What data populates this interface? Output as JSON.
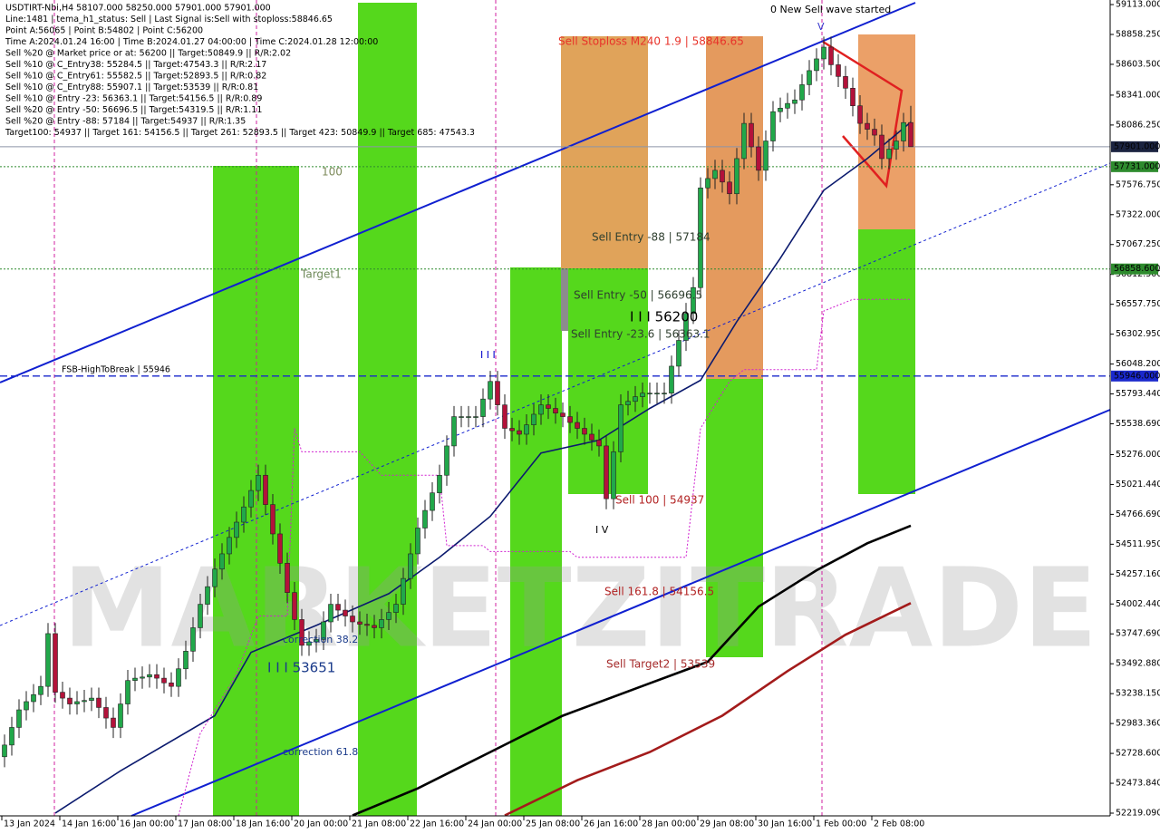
{
  "chart_data": {
    "type": "candlestick",
    "info_lines": [
      "USDTIRT-Nbi,H4  58107.000 58250.000 57901.000 57901.000",
      "Line:1481 | tema_h1_status: Sell | Last Signal is:Sell with stoploss:58846.65",
      "Point A:56065 | Point B:54802 | Point C:56200",
      "Time A:2024.01.24 16:00 | Time B:2024.01.27 04:00:00 | Time C:2024.01.28 12:00:00",
      "Sell %20 @ Market price or at: 56200 || Target:50849.9 || R/R:2.02",
      "Sell %10 @ C_Entry38: 55284.5 || Target:47543.3 || R/R:2.17",
      "Sell %10 @ C_Entry61: 55582.5 || Target:52893.5 || R/R:0.82",
      "Sell %10 @ C_Entry88: 55907.1 || Target:53539 || R/R:0.81",
      "Sell %10 @ Entry -23: 56363.1 || Target:54156.5 || R/R:0.89",
      "Sell %20 @ Entry -50: 56696.5 || Target:54319.5 || R/R:1.11",
      "Sell %20 @ Entry -88: 57184 || Target:54937 || R/R:1.35",
      "Target100: 54937 || Target 161: 54156.5 || Target 261: 52893.5 || Target 423: 50849.9 || Target 685: 47543.3"
    ],
    "watermark": "MARKETZITRADE",
    "categories": [
      "13 Jan 2024",
      "14 Jan 16:00",
      "16 Jan 00:00",
      "17 Jan 08:00",
      "18 Jan 16:00",
      "20 Jan 00:00",
      "21 Jan 08:00",
      "22 Jan 16:00",
      "24 Jan 00:00",
      "25 Jan 08:00",
      "26 Jan 16:00",
      "28 Jan 00:00",
      "29 Jan 08:00",
      "30 Jan 16:00",
      "1 Feb 00:00",
      "2 Feb 08:00"
    ],
    "ylim": [
      52196,
      59152
    ],
    "yticks": [
      {
        "value": 59113,
        "label": "59113.000"
      },
      {
        "value": 58858.25,
        "label": "58858.250"
      },
      {
        "value": 58603.5,
        "label": "58603.500"
      },
      {
        "value": 58341,
        "label": "58341.000"
      },
      {
        "value": 58086.25,
        "label": "58086.250"
      },
      {
        "value": 57576.75,
        "label": "57576.750"
      },
      {
        "value": 57322,
        "label": "57322.000"
      },
      {
        "value": 57067.25,
        "label": "57067.250"
      },
      {
        "value": 56812.5,
        "label": "56812.500"
      },
      {
        "value": 56557.75,
        "label": "56557.750"
      },
      {
        "value": 56302.95,
        "label": "56302.950"
      },
      {
        "value": 56048.2,
        "label": "56048.200"
      },
      {
        "value": 55793.44,
        "label": "55793.440"
      },
      {
        "value": 55538.69,
        "label": "55538.690"
      },
      {
        "value": 55276,
        "label": "55276.000"
      },
      {
        "value": 55021.44,
        "label": "55021.440"
      },
      {
        "value": 54766.69,
        "label": "54766.690"
      },
      {
        "value": 54511.95,
        "label": "54511.950"
      },
      {
        "value": 54257.16,
        "label": "54257.160"
      },
      {
        "value": 54002.44,
        "label": "54002.440"
      },
      {
        "value": 53747.69,
        "label": "53747.690"
      },
      {
        "value": 53492.88,
        "label": "53492.880"
      },
      {
        "value": 53238.15,
        "label": "53238.150"
      },
      {
        "value": 52983.36,
        "label": "52983.360"
      },
      {
        "value": 52728.6,
        "label": "52728.600"
      },
      {
        "value": 52473.84,
        "label": "52473.840"
      },
      {
        "value": 52219.09,
        "label": "52219.090"
      }
    ],
    "levels": [
      {
        "value": 57901,
        "label": "57901.000",
        "color": "#1b2340",
        "line_color": "#8c95a8",
        "style": "solid"
      },
      {
        "value": 57731,
        "label": "57731.000",
        "color": "#2e8b2e",
        "line_color": "#2e8b2e",
        "style": "dotted"
      },
      {
        "value": 56858.6,
        "label": "56858.600",
        "color": "#2e8b2e",
        "line_color": "#2e8b2e",
        "style": "dotted"
      },
      {
        "value": 55946,
        "label": "55946.000",
        "color": "#1a28cc",
        "line_color": "#1a28cc",
        "style": "dashed"
      }
    ],
    "up_color": "#21a84a",
    "down_color": "#b3123a",
    "ohlc": [
      [
        52700,
        52890,
        52610,
        52800
      ],
      [
        52800,
        53040,
        52710,
        52950
      ],
      [
        52950,
        53190,
        52860,
        53100
      ],
      [
        53100,
        53260,
        53010,
        53170
      ],
      [
        53170,
        53320,
        53080,
        53230
      ],
      [
        53230,
        53390,
        53140,
        53300
      ],
      [
        53300,
        53840,
        53210,
        53750
      ],
      [
        53750,
        53840,
        53160,
        53250
      ],
      [
        53250,
        53340,
        53110,
        53200
      ],
      [
        53200,
        53290,
        53060,
        53150
      ],
      [
        53150,
        53260,
        53060,
        53170
      ],
      [
        53170,
        53270,
        53080,
        53180
      ],
      [
        53180,
        53290,
        53090,
        53200
      ],
      [
        53200,
        53290,
        53030,
        53120
      ],
      [
        53120,
        53210,
        52940,
        53030
      ],
      [
        53030,
        53120,
        52860,
        52950
      ],
      [
        52950,
        53240,
        52860,
        53150
      ],
      [
        53150,
        53440,
        53060,
        53350
      ],
      [
        53350,
        53460,
        53260,
        53370
      ],
      [
        53370,
        53470,
        53280,
        53380
      ],
      [
        53380,
        53490,
        53290,
        53400
      ],
      [
        53400,
        53490,
        53280,
        53370
      ],
      [
        53370,
        53460,
        53240,
        53330
      ],
      [
        53330,
        53420,
        53210,
        53300
      ],
      [
        53300,
        53540,
        53210,
        53450
      ],
      [
        53450,
        53690,
        53360,
        53600
      ],
      [
        53600,
        53890,
        53510,
        53800
      ],
      [
        53800,
        54090,
        53710,
        54000
      ],
      [
        54000,
        54240,
        53910,
        54150
      ],
      [
        54150,
        54390,
        54060,
        54300
      ],
      [
        54300,
        54520,
        54210,
        54430
      ],
      [
        54430,
        54660,
        54340,
        54570
      ],
      [
        54570,
        54790,
        54480,
        54700
      ],
      [
        54700,
        54920,
        54610,
        54830
      ],
      [
        54830,
        55060,
        54740,
        54970
      ],
      [
        54970,
        55190,
        54880,
        55100
      ],
      [
        55100,
        55190,
        54760,
        54850
      ],
      [
        54850,
        54940,
        54510,
        54600
      ],
      [
        54600,
        54690,
        54260,
        54350
      ],
      [
        54350,
        54440,
        54010,
        54100
      ],
      [
        54100,
        54190,
        53780,
        53870
      ],
      [
        53870,
        53960,
        53560,
        53650
      ],
      [
        53650,
        53770,
        53560,
        53680
      ],
      [
        53680,
        53790,
        53590,
        53700
      ],
      [
        53700,
        53940,
        53610,
        53850
      ],
      [
        53850,
        54090,
        53760,
        54000
      ],
      [
        54000,
        54090,
        53860,
        53950
      ],
      [
        53950,
        54040,
        53810,
        53900
      ],
      [
        53900,
        53990,
        53760,
        53850
      ],
      [
        53850,
        53940,
        53740,
        53830
      ],
      [
        53830,
        53920,
        53730,
        53820
      ],
      [
        53820,
        53910,
        53710,
        53800
      ],
      [
        53800,
        53960,
        53710,
        53870
      ],
      [
        53870,
        54020,
        53780,
        53930
      ],
      [
        53930,
        54090,
        53840,
        54000
      ],
      [
        54000,
        54310,
        53910,
        54220
      ],
      [
        54220,
        54520,
        54130,
        54430
      ],
      [
        54430,
        54740,
        54340,
        54650
      ],
      [
        54650,
        54890,
        54560,
        54800
      ],
      [
        54800,
        55040,
        54710,
        54950
      ],
      [
        54950,
        55190,
        54860,
        55100
      ],
      [
        55100,
        55440,
        55010,
        55350
      ],
      [
        55350,
        55690,
        55260,
        55600
      ],
      [
        55600,
        55690,
        55510,
        55600
      ],
      [
        55600,
        55690,
        55510,
        55600
      ],
      [
        55600,
        55690,
        55510,
        55600
      ],
      [
        55600,
        55840,
        55510,
        55750
      ],
      [
        55750,
        55990,
        55660,
        55900
      ],
      [
        55900,
        55990,
        55610,
        55700
      ],
      [
        55700,
        55790,
        55410,
        55500
      ],
      [
        55500,
        55590,
        55390,
        55480
      ],
      [
        55480,
        55570,
        55360,
        55450
      ],
      [
        55450,
        55620,
        55360,
        55530
      ],
      [
        55530,
        55710,
        55440,
        55620
      ],
      [
        55620,
        55790,
        55530,
        55700
      ],
      [
        55700,
        55790,
        55580,
        55670
      ],
      [
        55670,
        55760,
        55540,
        55630
      ],
      [
        55630,
        55720,
        55510,
        55600
      ],
      [
        55600,
        55690,
        55460,
        55550
      ],
      [
        55550,
        55640,
        55410,
        55500
      ],
      [
        55500,
        55590,
        55360,
        55450
      ],
      [
        55450,
        55540,
        55310,
        55400
      ],
      [
        55400,
        55490,
        55260,
        55350
      ],
      [
        55350,
        55440,
        54810,
        54900
      ],
      [
        54900,
        55390,
        54810,
        55300
      ],
      [
        55300,
        55790,
        55210,
        55700
      ],
      [
        55700,
        55820,
        55610,
        55730
      ],
      [
        55730,
        55860,
        55640,
        55770
      ],
      [
        55770,
        55890,
        55680,
        55800
      ],
      [
        55800,
        55890,
        55710,
        55800
      ],
      [
        55800,
        55890,
        55710,
        55800
      ],
      [
        55800,
        55890,
        55710,
        55800
      ],
      [
        55800,
        56120,
        55710,
        56030
      ],
      [
        56030,
        56340,
        55940,
        56250
      ],
      [
        56250,
        56570,
        56160,
        56480
      ],
      [
        56480,
        56790,
        56390,
        56700
      ],
      [
        56700,
        57640,
        56610,
        57550
      ],
      [
        57550,
        57720,
        57460,
        57630
      ],
      [
        57630,
        57790,
        57540,
        57700
      ],
      [
        57700,
        57790,
        57510,
        57600
      ],
      [
        57600,
        57690,
        57410,
        57500
      ],
      [
        57500,
        57890,
        57410,
        57800
      ],
      [
        57800,
        58190,
        57710,
        58100
      ],
      [
        58100,
        58190,
        57810,
        57900
      ],
      [
        57900,
        57990,
        57610,
        57700
      ],
      [
        57700,
        58040,
        57610,
        57950
      ],
      [
        57950,
        58290,
        57860,
        58200
      ],
      [
        58200,
        58320,
        58110,
        58230
      ],
      [
        58230,
        58360,
        58140,
        58270
      ],
      [
        58270,
        58390,
        58180,
        58300
      ],
      [
        58300,
        58520,
        58210,
        58430
      ],
      [
        58430,
        58640,
        58340,
        58550
      ],
      [
        58550,
        58740,
        58460,
        58650
      ],
      [
        58650,
        58840,
        58560,
        58750
      ],
      [
        58750,
        58840,
        58510,
        58600
      ],
      [
        58600,
        58690,
        58410,
        58500
      ],
      [
        58500,
        58590,
        58310,
        58400
      ],
      [
        58400,
        58490,
        58160,
        58250
      ],
      [
        58250,
        58340,
        58010,
        58100
      ],
      [
        58100,
        58190,
        57960,
        58050
      ],
      [
        58050,
        58140,
        57910,
        58000
      ],
      [
        58000,
        58090,
        57710,
        57800
      ],
      [
        57800,
        57970,
        57710,
        57880
      ],
      [
        57880,
        58040,
        57790,
        57950
      ],
      [
        57950,
        58190,
        57860,
        58107
      ],
      [
        58107,
        58250,
        57901,
        57901
      ]
    ],
    "series": [
      {
        "color": "#0b1a6e",
        "width": 1.6,
        "dash": "none",
        "x": [
          7,
          16,
          29,
          34,
          43,
          53,
          60,
          67,
          74,
          82,
          89,
          96,
          101,
          107,
          113,
          119,
          125
        ],
        "values": [
          52220,
          52580,
          53050,
          53590,
          53820,
          54090,
          54400,
          54750,
          55290,
          55400,
          55670,
          55910,
          56410,
          56950,
          57530,
          57800,
          58110
        ]
      },
      {
        "color": "#000000",
        "width": 2.6,
        "dash": "none",
        "x": [
          48,
          57,
          67,
          77,
          87,
          97,
          104,
          112,
          119,
          125
        ],
        "values": [
          52200,
          52430,
          52740,
          53050,
          53280,
          53510,
          53980,
          54290,
          54520,
          54670
        ]
      },
      {
        "color": "#a31b1b",
        "width": 2.6,
        "dash": "none",
        "x": [
          69,
          79,
          89,
          99,
          108,
          116,
          125
        ],
        "values": [
          52200,
          52500,
          52740,
          53050,
          53430,
          53740,
          54010
        ]
      },
      {
        "color": "#d020d0",
        "width": 1,
        "dash": "2,2",
        "x": [
          24,
          27,
          32,
          35,
          39,
          40,
          41,
          49,
          52,
          60,
          61,
          66,
          67,
          78,
          79,
          94,
          96,
          100,
          102,
          112,
          113,
          117,
          125
        ],
        "values": [
          52200,
          52900,
          53400,
          53900,
          53900,
          55500,
          55300,
          55300,
          55100,
          55100,
          54500,
          54500,
          54450,
          54450,
          54400,
          54400,
          55500,
          55900,
          56000,
          56000,
          56500,
          56600,
          56600
        ]
      }
    ],
    "annotations": [
      "0 New Sell wave started",
      "Sell Stoploss M240 1.9 | 58846.65",
      "100",
      "Target1",
      "Sell Entry -88 | 57184",
      "Sell Entry -50 | 56696.5",
      "I I I 56200",
      "Sell Entry -23.6 | 56363.1",
      "FSB-HighToBreak | 55946",
      "I I I",
      "Sell 100 | 54937",
      "I V",
      "Sell 161.8 | 54156.5",
      "correction 38.2",
      "I I I 53651",
      "Sell Target2 | 53539",
      "correction 61.8",
      "V"
    ]
  }
}
